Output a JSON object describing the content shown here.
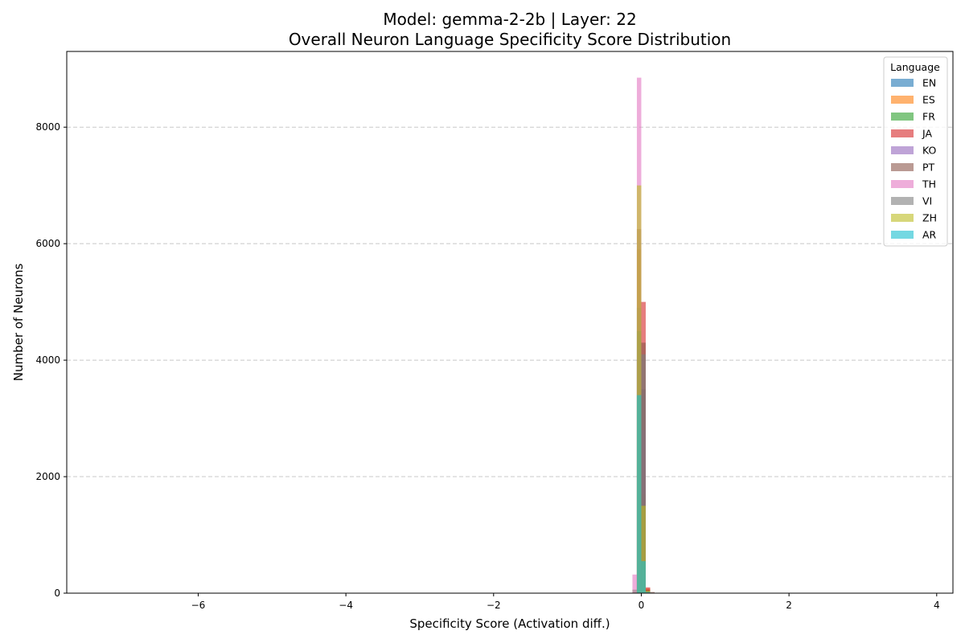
{
  "chart_data": {
    "type": "bar",
    "title_line1": "Model: gemma-2-2b | Layer: 22",
    "title_line2": "Overall Neuron Language Specificity Score Distribution",
    "xlabel": "Specificity Score (Activation diff.)",
    "ylabel": "Number of Neurons",
    "xlim": [
      -7.78,
      4.22
    ],
    "ylim": [
      0,
      9300
    ],
    "xticks": [
      -6,
      -4,
      -2,
      0,
      2,
      4
    ],
    "xtick_labels": [
      "−6",
      "−4",
      "−2",
      "0",
      "2",
      "4"
    ],
    "yticks": [
      0,
      2000,
      4000,
      6000,
      8000
    ],
    "ytick_labels": [
      "0",
      "2000",
      "4000",
      "6000",
      "8000"
    ],
    "grid": "y-dashed",
    "legend_title": "Language",
    "legend_position": "top-right",
    "bin_width": 0.06,
    "series": [
      {
        "name": "EN",
        "color": "#1f77b4",
        "bins": [
          [
            -0.03,
            4000
          ],
          [
            0.03,
            3500
          ],
          [
            0.09,
            60
          ]
        ]
      },
      {
        "name": "ES",
        "color": "#ff7f0e",
        "bins": [
          [
            -0.03,
            5900
          ],
          [
            0.03,
            1700
          ],
          [
            0.09,
            80
          ]
        ]
      },
      {
        "name": "FR",
        "color": "#2ca02c",
        "bins": [
          [
            -0.09,
            60
          ],
          [
            -0.03,
            4900
          ],
          [
            0.03,
            1700
          ],
          [
            0.09,
            50
          ]
        ]
      },
      {
        "name": "JA",
        "color": "#d62728",
        "bins": [
          [
            -0.03,
            4000
          ],
          [
            0.03,
            5000
          ],
          [
            0.09,
            100
          ]
        ]
      },
      {
        "name": "KO",
        "color": "#9467bd",
        "bins": [
          [
            -0.03,
            4200
          ],
          [
            0.03,
            2800
          ],
          [
            0.09,
            30
          ]
        ]
      },
      {
        "name": "PT",
        "color": "#8c564b",
        "bins": [
          [
            -0.03,
            6250
          ],
          [
            0.03,
            4300
          ],
          [
            0.09,
            40
          ],
          [
            0.15,
            20
          ]
        ]
      },
      {
        "name": "TH",
        "color": "#e377c2",
        "bins": [
          [
            -0.09,
            320
          ],
          [
            -0.03,
            8850
          ],
          [
            0.03,
            400
          ],
          [
            0.09,
            20
          ]
        ]
      },
      {
        "name": "VI",
        "color": "#7f7f7f",
        "bins": [
          [
            -0.03,
            4500
          ],
          [
            0.03,
            4100
          ],
          [
            0.09,
            30
          ]
        ]
      },
      {
        "name": "ZH",
        "color": "#bcbd22",
        "bins": [
          [
            -0.03,
            7000
          ],
          [
            0.03,
            1500
          ],
          [
            0.09,
            40
          ]
        ]
      },
      {
        "name": "AR",
        "color": "#17becf",
        "bins": [
          [
            -0.03,
            3400
          ],
          [
            0.03,
            550
          ],
          [
            0.09,
            20
          ]
        ]
      }
    ]
  }
}
